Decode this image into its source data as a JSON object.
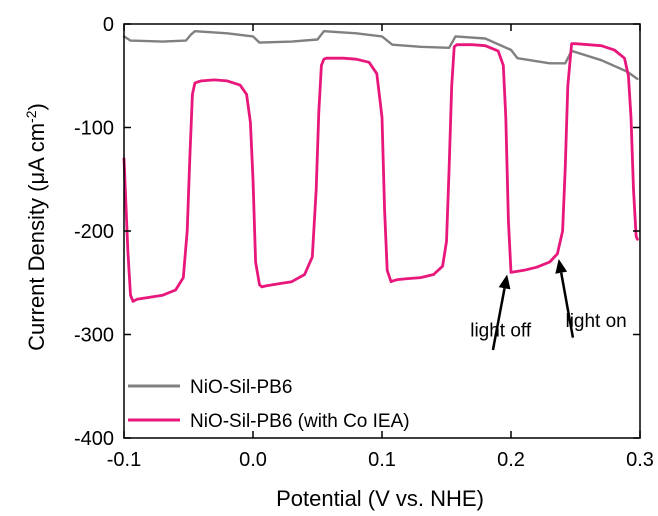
{
  "chart_data": {
    "type": "line",
    "xlabel": "Potential (V vs. NHE)",
    "ylabel": {
      "pre": "Current Density (",
      "mu": "μ",
      "unit": "A cm",
      "sup": "-2",
      "post": ")"
    },
    "xlim": [
      -0.1,
      0.3
    ],
    "ylim": [
      -400,
      0
    ],
    "xticks": [
      -0.1,
      0.0,
      0.1,
      0.2,
      0.3
    ],
    "xtick_labels": [
      "-0.1",
      "0.0",
      "0.1",
      "0.2",
      "0.3"
    ],
    "yticks": [
      0,
      -100,
      -200,
      -300,
      -400
    ],
    "ytick_labels": [
      "0",
      "-100",
      "-200",
      "-300",
      "-400"
    ],
    "legend_position": "bottom-left",
    "series": [
      {
        "name": "NiO-Sil-PB6",
        "color": "#808080",
        "x": [
          -0.1,
          -0.095,
          -0.07,
          -0.052,
          -0.048,
          -0.045,
          -0.02,
          0.0,
          0.005,
          0.03,
          0.05,
          0.055,
          0.08,
          0.1,
          0.108,
          0.13,
          0.152,
          0.157,
          0.18,
          0.2,
          0.205,
          0.23,
          0.242,
          0.247,
          0.27,
          0.29,
          0.298
        ],
        "values": [
          -12,
          -16,
          -17,
          -16,
          -10,
          -7,
          -9,
          -12,
          -18,
          -17,
          -15,
          -7,
          -9,
          -12,
          -20,
          -22,
          -23,
          -12,
          -14,
          -25,
          -33,
          -38,
          -38,
          -26,
          -35,
          -46,
          -53
        ]
      },
      {
        "name": "NiO-Sil-PB6 (with Co IEA)",
        "color": "#e8177c",
        "x": [
          -0.1,
          -0.099,
          -0.097,
          -0.095,
          -0.093,
          -0.09,
          -0.08,
          -0.07,
          -0.06,
          -0.054,
          -0.051,
          -0.049,
          -0.047,
          -0.045,
          -0.043,
          -0.04,
          -0.03,
          -0.02,
          -0.01,
          -0.005,
          -0.002,
          0.0,
          0.002,
          0.005,
          0.007,
          0.01,
          0.02,
          0.03,
          0.04,
          0.046,
          0.049,
          0.051,
          0.053,
          0.055,
          0.057,
          0.06,
          0.07,
          0.08,
          0.09,
          0.096,
          0.1,
          0.102,
          0.104,
          0.107,
          0.109,
          0.112,
          0.12,
          0.13,
          0.14,
          0.147,
          0.15,
          0.152,
          0.154,
          0.156,
          0.158,
          0.16,
          0.17,
          0.18,
          0.19,
          0.194,
          0.196,
          0.198,
          0.2,
          0.21,
          0.22,
          0.23,
          0.236,
          0.24,
          0.242,
          0.244,
          0.247,
          0.25,
          0.26,
          0.27,
          0.28,
          0.288,
          0.291,
          0.293,
          0.295,
          0.297,
          0.298
        ],
        "values": [
          -130,
          -160,
          -220,
          -262,
          -268,
          -266,
          -264,
          -262,
          -257,
          -245,
          -200,
          -130,
          -68,
          -57,
          -56,
          -55,
          -54,
          -55,
          -59,
          -68,
          -95,
          -150,
          -230,
          -252,
          -254,
          -253,
          -251,
          -249,
          -242,
          -225,
          -160,
          -85,
          -40,
          -34,
          -33,
          -33,
          -33,
          -34,
          -37,
          -48,
          -90,
          -180,
          -238,
          -249,
          -248,
          -247,
          -246,
          -245,
          -242,
          -234,
          -210,
          -140,
          -60,
          -22,
          -20,
          -20,
          -20,
          -21,
          -26,
          -40,
          -90,
          -190,
          -240,
          -238,
          -235,
          -230,
          -222,
          -200,
          -140,
          -60,
          -19,
          -19,
          -20,
          -21,
          -25,
          -33,
          -50,
          -90,
          -160,
          -205,
          -208
        ]
      }
    ],
    "annotations": [
      {
        "text": "light off",
        "x": 0.192,
        "y": -296,
        "arrow_from": [
          0.186,
          -315
        ],
        "arrow_to": [
          0.197,
          -242
        ]
      },
      {
        "text": "light on",
        "x": 0.266,
        "y": -287,
        "arrow_from": [
          0.248,
          -303
        ],
        "arrow_to": [
          0.237,
          -227
        ]
      }
    ]
  }
}
